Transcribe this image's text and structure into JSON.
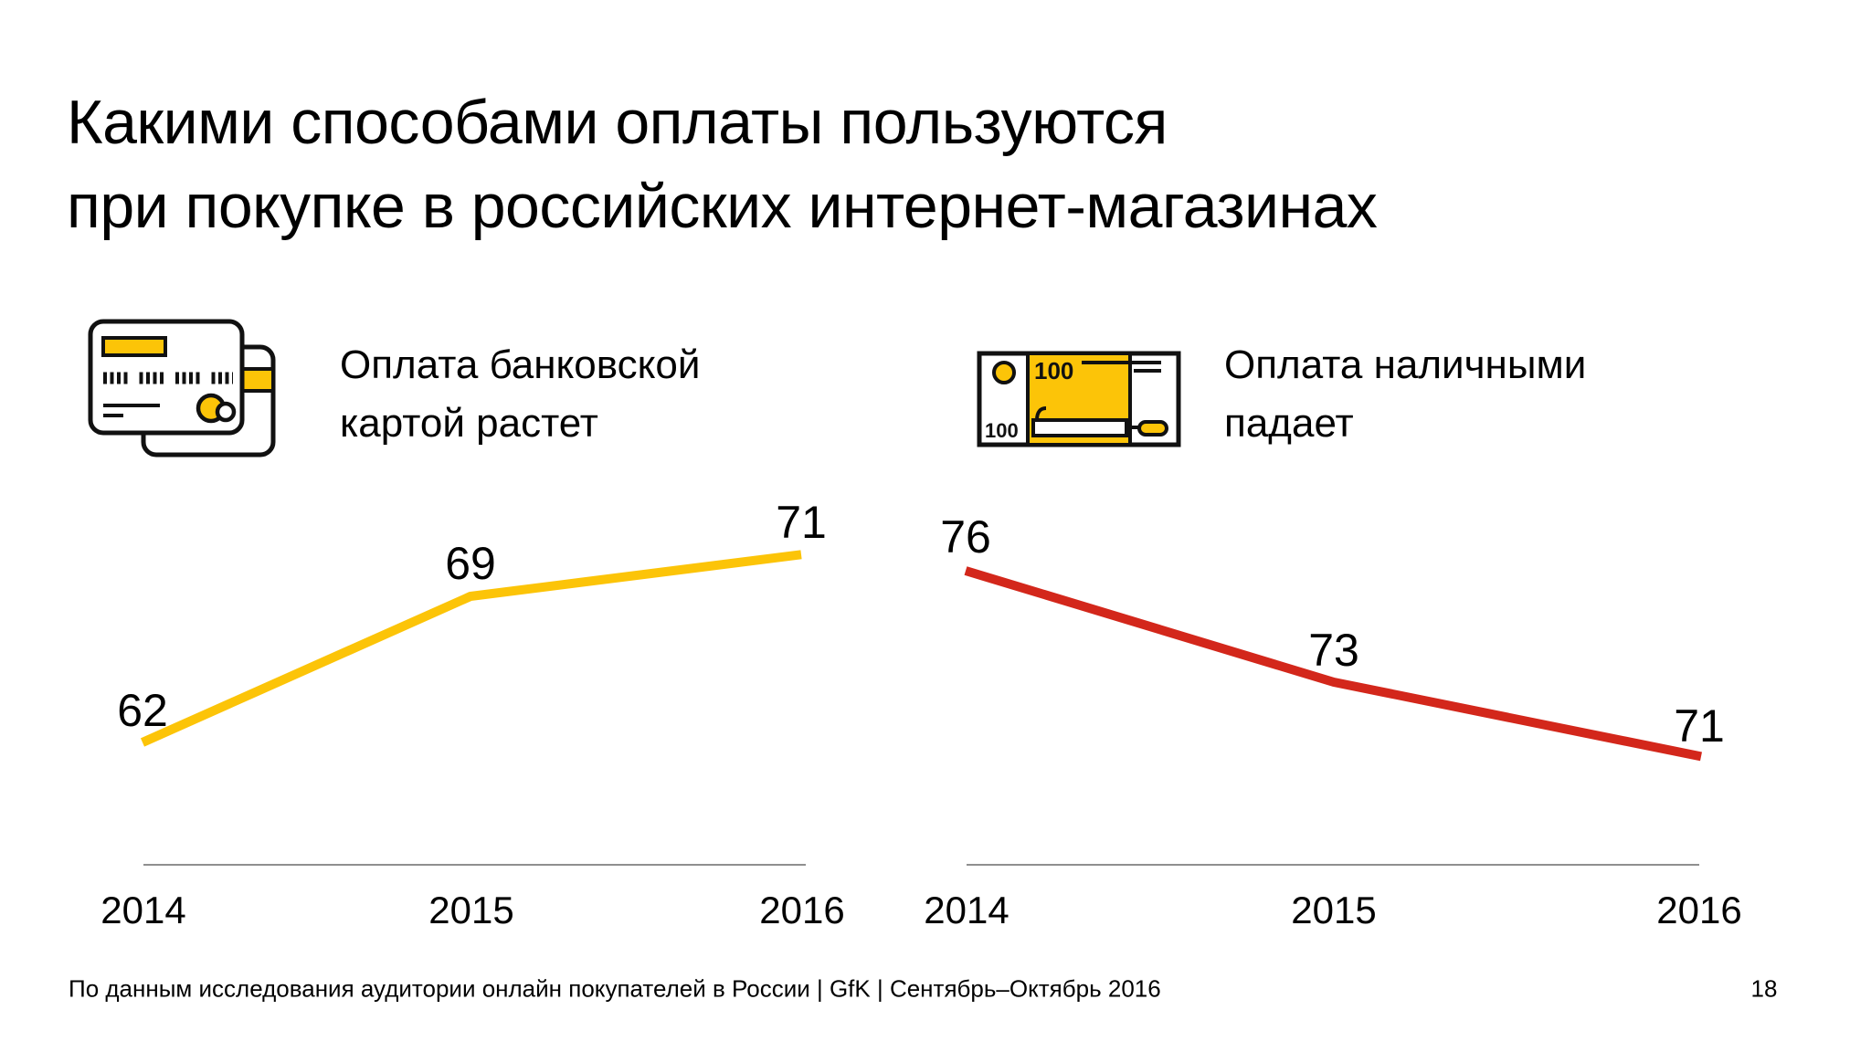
{
  "slide": {
    "title_line1": "Какими способами оплаты пользуются",
    "title_line2": "при покупке в российских интернет-магазинах",
    "footer": "По данным исследования аудитории онлайн покупателей в России | GfK | Сентябрь–Октябрь 2016",
    "page_number": "18"
  },
  "colors": {
    "accent_yellow": "#FCC408",
    "accent_red": "#D3271B",
    "axis_gray": "#8F8F8F",
    "text": "#000000"
  },
  "icons": {
    "left": {
      "name": "credit-cards-icon"
    },
    "right": {
      "name": "banknote-stack-icon",
      "denomination": "100"
    }
  },
  "chart_data": [
    {
      "type": "line",
      "title": "Оплата банковской картой растет",
      "categories": [
        "2014",
        "2015",
        "2016"
      ],
      "series": [
        {
          "name": "Оплата банковской картой",
          "values": [
            62,
            69,
            71
          ],
          "color": "#FCC408"
        }
      ],
      "grid": false,
      "legend": false,
      "data_labels": true,
      "y_axis_visible": false
    },
    {
      "type": "line",
      "title": "Оплата наличными падает",
      "categories": [
        "2014",
        "2015",
        "2016"
      ],
      "series": [
        {
          "name": "Оплата наличными",
          "values": [
            76,
            73,
            71
          ],
          "color": "#D3271B"
        }
      ],
      "grid": false,
      "legend": false,
      "data_labels": true,
      "y_axis_visible": false
    }
  ]
}
